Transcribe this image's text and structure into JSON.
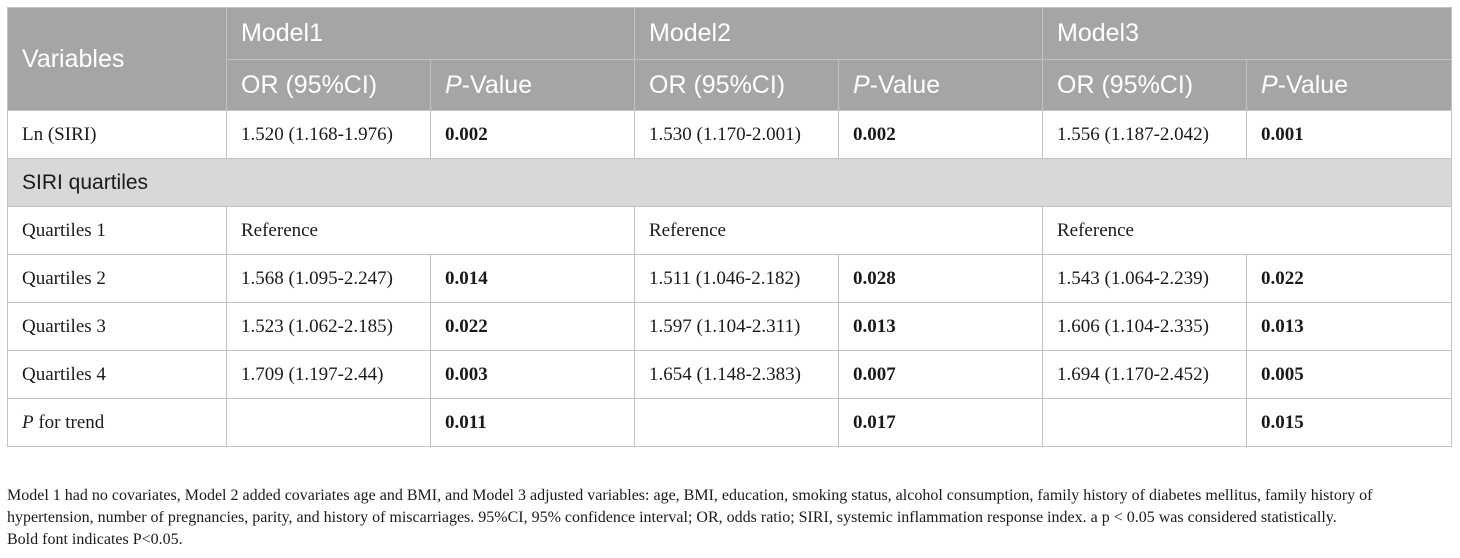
{
  "table": {
    "header": {
      "variables": "Variables",
      "models": [
        "Model1",
        "Model2",
        "Model3"
      ],
      "or_label": "OR (95%CI)",
      "p_label_italic": "P",
      "p_label_rest": "-Value"
    },
    "ln_siri": {
      "label": "Ln (SIRI)",
      "cells": [
        {
          "or": "1.520 (1.168-1.976)",
          "p": "0.002"
        },
        {
          "or": "1.530 (1.170-2.001)",
          "p": "0.002"
        },
        {
          "or": "1.556 (1.187-2.042)",
          "p": "0.001"
        }
      ]
    },
    "section_label": "SIRI quartiles",
    "q1": {
      "label": "Quartiles 1",
      "reference": [
        "Reference",
        "Reference",
        "Reference"
      ]
    },
    "quartile_rows": [
      {
        "label": "Quartiles 2",
        "cells": [
          {
            "or": "1.568 (1.095-2.247)",
            "p": "0.014"
          },
          {
            "or": "1.511 (1.046-2.182)",
            "p": "0.028"
          },
          {
            "or": "1.543 (1.064-2.239)",
            "p": "0.022"
          }
        ]
      },
      {
        "label": "Quartiles 3",
        "cells": [
          {
            "or": "1.523 (1.062-2.185)",
            "p": "0.022"
          },
          {
            "or": "1.597 (1.104-2.311)",
            "p": "0.013"
          },
          {
            "or": "1.606 (1.104-2.335)",
            "p": "0.013"
          }
        ]
      },
      {
        "label": "Quartiles 4",
        "cells": [
          {
            "or": "1.709 (1.197-2.44)",
            "p": "0.003"
          },
          {
            "or": "1.654 (1.148-2.383)",
            "p": "0.007"
          },
          {
            "or": "1.694 (1.170-2.452)",
            "p": "0.005"
          }
        ]
      }
    ],
    "trend": {
      "label_italic": "P",
      "label_rest": " for trend",
      "p_values": [
        "0.011",
        "0.017",
        "0.015"
      ]
    }
  },
  "footnotes": {
    "note1": "Model 1 had no covariates, Model 2 added covariates age and BMI, and Model 3 adjusted variables: age, BMI, education, smoking status, alcohol consumption, family history of diabetes mellitus, family history of hypertension, number of pregnancies, parity, and history of miscarriages. 95%CI, 95% confidence interval; OR, odds ratio; SIRI, systemic inflammation response index. a p < 0.05 was considered statistically.",
    "note2": "Bold font indicates P<0.05."
  }
}
